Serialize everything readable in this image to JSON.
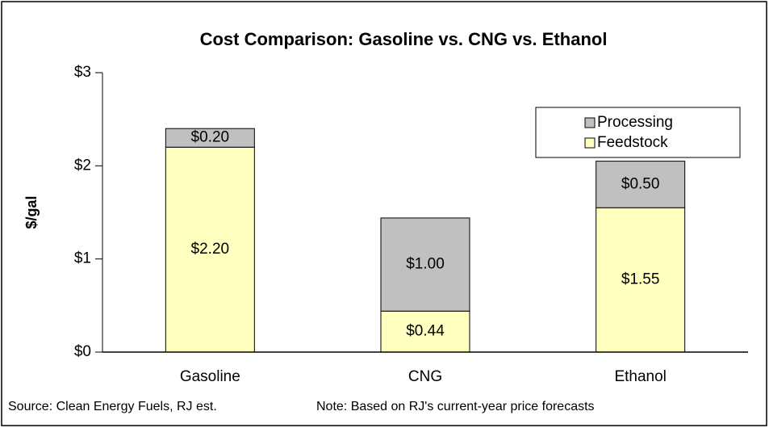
{
  "chart_data": {
    "type": "stacked_bar",
    "title": "Cost Comparison: Gasoline vs. CNG vs. Ethanol",
    "y_label": "$/gal",
    "categories": [
      "Gasoline",
      "CNG",
      "Ethanol"
    ],
    "series": [
      {
        "name": "Feedstock",
        "color": "#ffffc0",
        "values": [
          2.2,
          0.44,
          1.55
        ],
        "value_labels": [
          "$2.20",
          "$0.44",
          "$1.55"
        ]
      },
      {
        "name": "Processing",
        "color": "#c0c0c0",
        "values": [
          0.2,
          1.0,
          0.5
        ],
        "value_labels": [
          "$0.20",
          "$1.00",
          "$0.50"
        ]
      }
    ],
    "ylim": [
      0,
      3
    ],
    "yticks": [
      {
        "value": 0,
        "label": "$0"
      },
      {
        "value": 1,
        "label": "$1"
      },
      {
        "value": 2,
        "label": "$2"
      },
      {
        "value": 3,
        "label": "$3"
      }
    ],
    "legend": "upper right",
    "source": "Source: Clean Energy Fuels, RJ est.",
    "note": "Note: Based on RJ's current-year price forecasts"
  }
}
